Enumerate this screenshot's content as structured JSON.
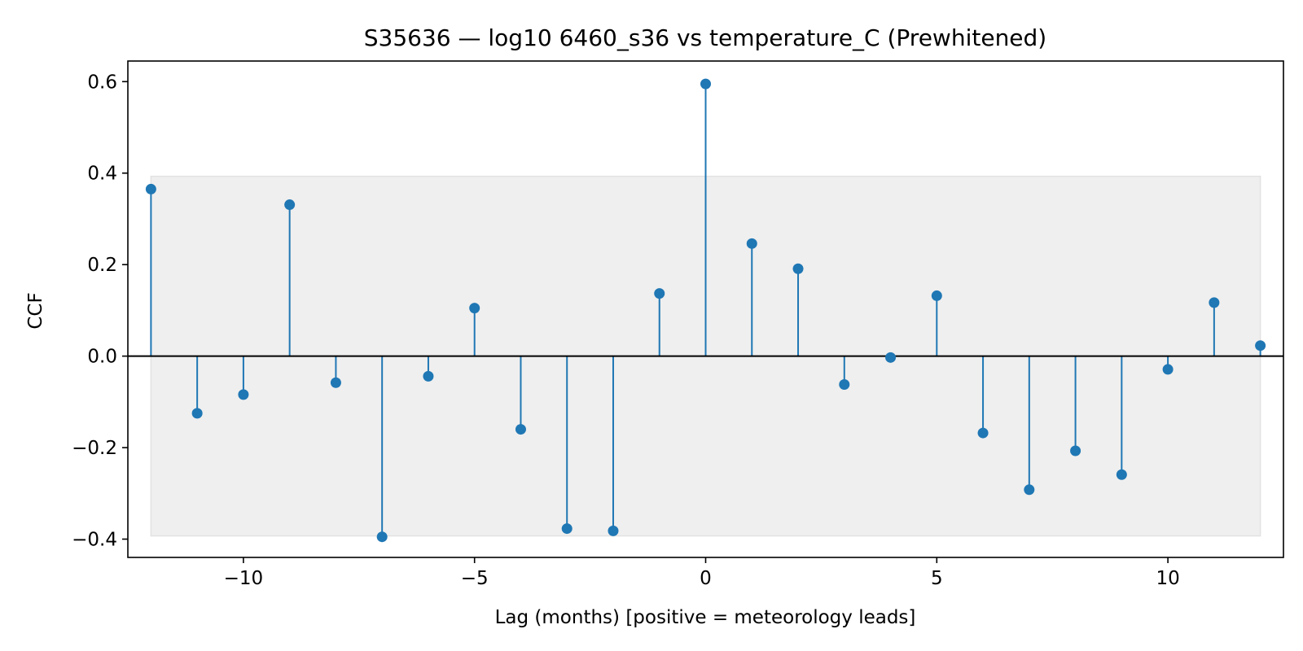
{
  "chart_data": {
    "type": "stem",
    "title": "S35636 — log10 6460_s36 vs temperature_C (Prewhitened)",
    "xlabel": "Lag (months)  [positive = meteorology leads]",
    "ylabel": "CCF",
    "xlim": [
      -12.5,
      12.5
    ],
    "ylim": [
      -0.44,
      0.645
    ],
    "xticks": [
      -10,
      -5,
      0,
      5,
      10
    ],
    "xtick_labels": [
      "−10",
      "−5",
      "0",
      "5",
      "10"
    ],
    "yticks": [
      0.6,
      0.4,
      0.2,
      0.0,
      -0.2,
      -0.4
    ],
    "ytick_labels": [
      "0.6",
      "0.4",
      "0.2",
      "0.0",
      "−0.2",
      "−0.4"
    ],
    "confidence_band": {
      "lower": -0.393,
      "upper": 0.393,
      "color": "#efefef"
    },
    "baseline": 0,
    "grid": false,
    "stem_color": "#1f77b4",
    "points": [
      {
        "lag": -12,
        "ccf": 0.365
      },
      {
        "lag": -11,
        "ccf": -0.125
      },
      {
        "lag": -10,
        "ccf": -0.084
      },
      {
        "lag": -9,
        "ccf": 0.331
      },
      {
        "lag": -8,
        "ccf": -0.058
      },
      {
        "lag": -7,
        "ccf": -0.395
      },
      {
        "lag": -6,
        "ccf": -0.044
      },
      {
        "lag": -5,
        "ccf": 0.105
      },
      {
        "lag": -4,
        "ccf": -0.16
      },
      {
        "lag": -3,
        "ccf": -0.377
      },
      {
        "lag": -2,
        "ccf": -0.382
      },
      {
        "lag": -1,
        "ccf": 0.137
      },
      {
        "lag": 0,
        "ccf": 0.595
      },
      {
        "lag": 1,
        "ccf": 0.246
      },
      {
        "lag": 2,
        "ccf": 0.191
      },
      {
        "lag": 3,
        "ccf": -0.062
      },
      {
        "lag": 4,
        "ccf": -0.003
      },
      {
        "lag": 5,
        "ccf": 0.132
      },
      {
        "lag": 6,
        "ccf": -0.168
      },
      {
        "lag": 7,
        "ccf": -0.292
      },
      {
        "lag": 8,
        "ccf": -0.207
      },
      {
        "lag": 9,
        "ccf": -0.259
      },
      {
        "lag": 10,
        "ccf": -0.029
      },
      {
        "lag": 11,
        "ccf": 0.117
      },
      {
        "lag": 12,
        "ccf": 0.023
      }
    ]
  }
}
